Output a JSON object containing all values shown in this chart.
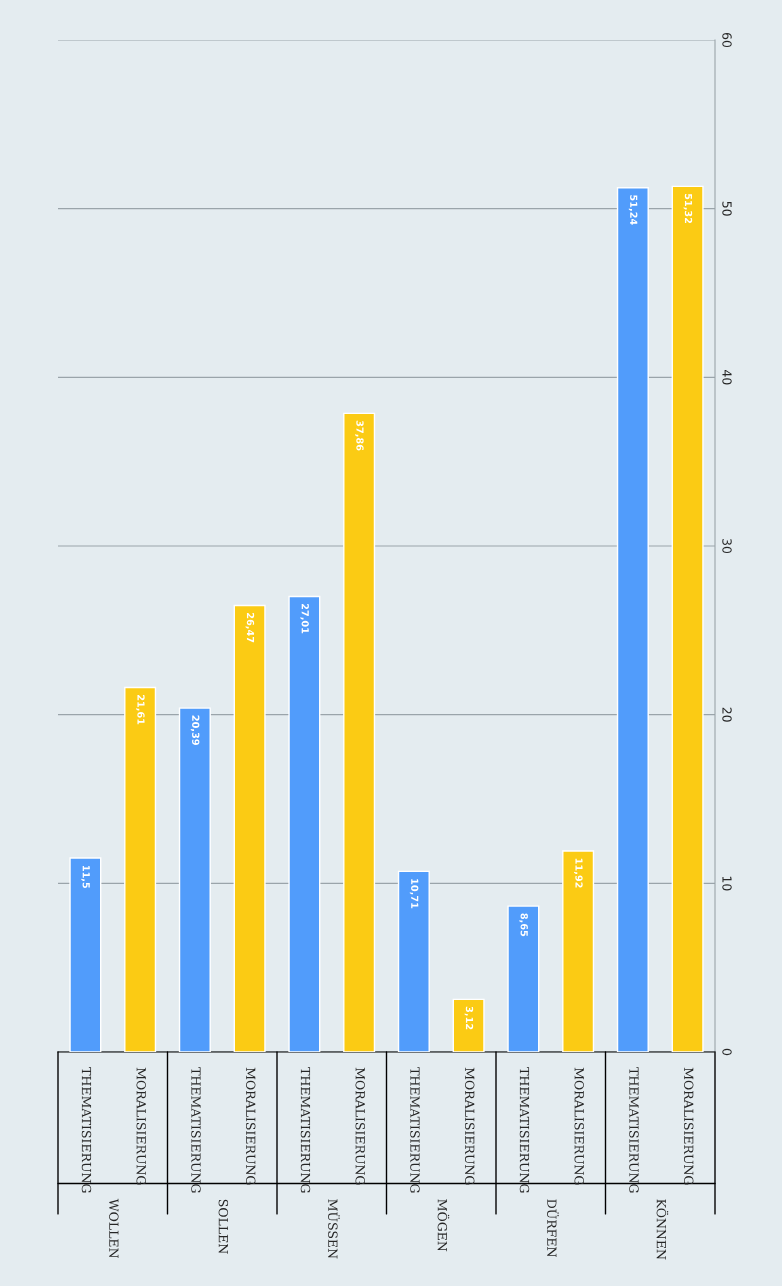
{
  "chart_data": {
    "type": "bar",
    "categories": [
      "WOLLEN",
      "SOLLEN",
      "MÜSSEN",
      "MÖGEN",
      "DÜRFEN",
      "KÖNNEN"
    ],
    "series": [
      {
        "name": "THEMATISIERUNG",
        "color": "#519cfb",
        "values": [
          11.5,
          20.39,
          27.01,
          10.71,
          8.65,
          51.24
        ],
        "value_labels": [
          "11,5",
          "20,39",
          "27,01",
          "10,71",
          "8,65",
          "51,24"
        ]
      },
      {
        "name": "MORALISIERUNG",
        "color": "#fbcb14",
        "values": [
          21.61,
          26.47,
          37.86,
          3.12,
          11.92,
          51.32
        ],
        "value_labels": [
          "21,61",
          "26,47",
          "37,86",
          "3,12",
          "11,92",
          "51,32"
        ]
      }
    ],
    "ylim": [
      0,
      60
    ],
    "yticks": [
      0,
      10,
      20,
      30,
      40,
      50,
      60
    ],
    "grid": "y",
    "legend": false
  }
}
